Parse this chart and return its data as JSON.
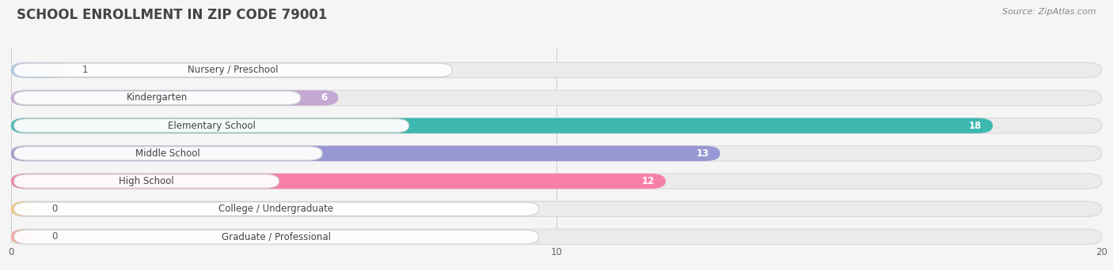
{
  "title": "SCHOOL ENROLLMENT IN ZIP CODE 79001",
  "source": "Source: ZipAtlas.com",
  "categories": [
    "Nursery / Preschool",
    "Kindergarten",
    "Elementary School",
    "Middle School",
    "High School",
    "College / Undergraduate",
    "Graduate / Professional"
  ],
  "values": [
    1,
    6,
    18,
    13,
    12,
    0,
    0
  ],
  "bar_colors": [
    "#aec6e8",
    "#c4a8d4",
    "#3db8b0",
    "#9898d4",
    "#f880a8",
    "#f8c880",
    "#f8a8a0"
  ],
  "bg_bar_color": "#ebebeb",
  "bg_bar_edge": "#d8d8d8",
  "xlim": [
    0,
    20
  ],
  "xticks": [
    0,
    10,
    20
  ],
  "label_color": "#444444",
  "title_fontsize": 12,
  "label_fontsize": 8.5,
  "value_fontsize": 8.5,
  "source_fontsize": 8,
  "bg_color": "#f5f5f5",
  "value_inside_threshold": 2
}
